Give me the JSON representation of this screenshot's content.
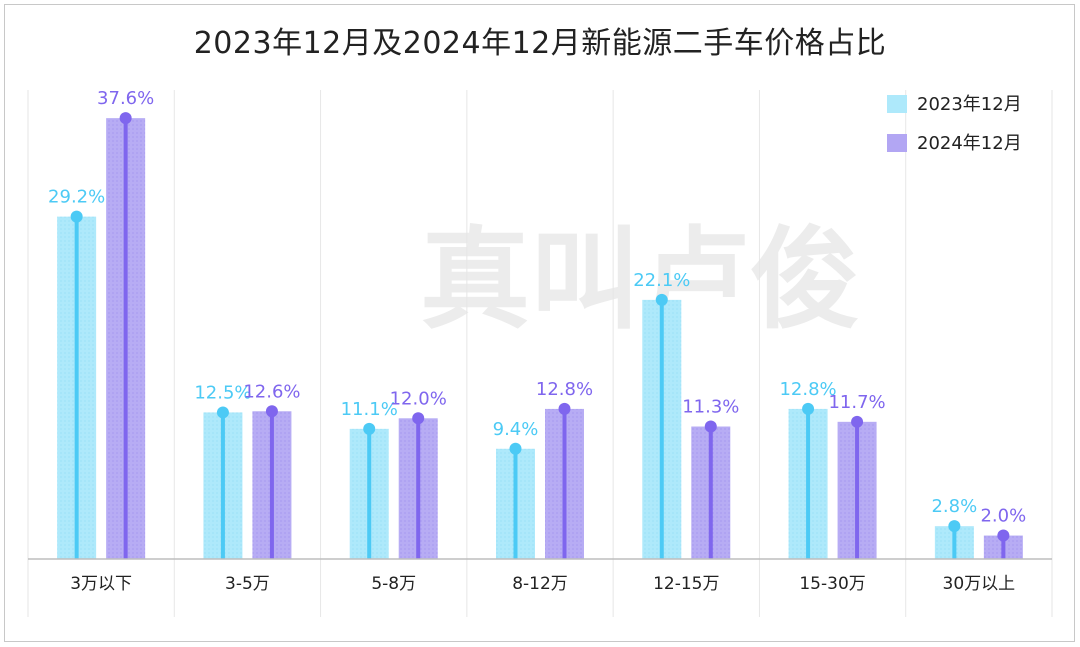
{
  "colors": {
    "series_2023_fill": "#aee9fb",
    "series_2023_stem": "#4ccaf5",
    "series_2024_fill": "#b2a6f3",
    "series_2024_stem": "#7f66ee",
    "grid": "#e6e6e6",
    "axis": "#bdbdbd",
    "watermark": "#ececec"
  },
  "watermark_text": "真叫卢俊",
  "chart_data": {
    "type": "bar",
    "title": "2023年12月及2024年12月新能源二手车价格占比",
    "xlabel": "",
    "ylabel": "",
    "ylim": [
      0,
      40
    ],
    "grid": "vertical separators",
    "legend_position": "top-right",
    "categories": [
      "3万以下",
      "3-5万",
      "5-8万",
      "8-12万",
      "12-15万",
      "15-30万",
      "30万以上"
    ],
    "series": [
      {
        "name": "2023年12月",
        "values": [
          29.2,
          12.5,
          11.1,
          9.4,
          22.1,
          12.8,
          2.8
        ],
        "labels": [
          "29.2%",
          "12.5%",
          "11.1%",
          "9.4%",
          "22.1%",
          "12.8%",
          "2.8%"
        ]
      },
      {
        "name": "2024年12月",
        "values": [
          37.6,
          12.6,
          12.0,
          12.8,
          11.3,
          11.7,
          2.0
        ],
        "labels": [
          "37.6%",
          "12.6%",
          "12.0%",
          "12.8%",
          "11.3%",
          "11.7%",
          "2.0%"
        ]
      }
    ]
  }
}
